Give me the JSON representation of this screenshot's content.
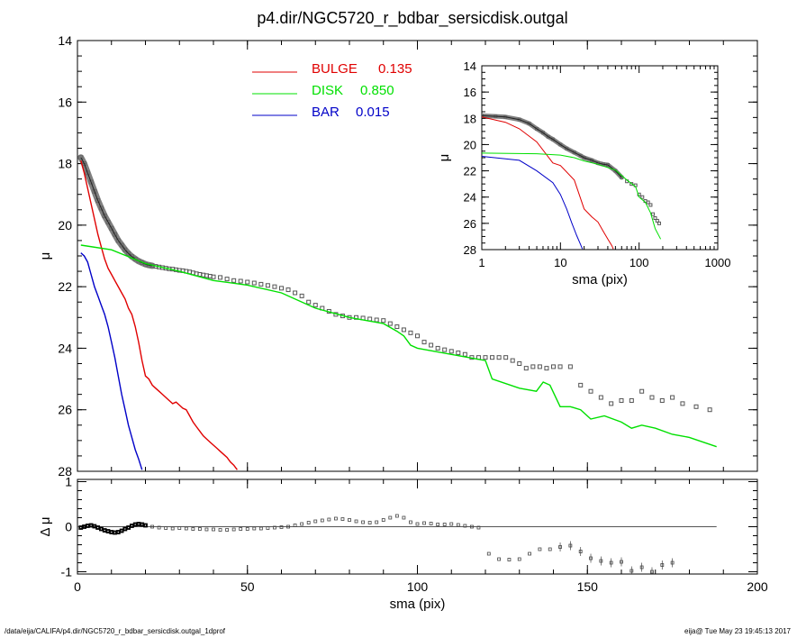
{
  "title": "p4.dir/NGC5720_r_bdbar_sersicdisk.outgal",
  "footer_left": "/data/eija/CALIFA/p4.dir/NGC5720_r_bdbar_sersicdisk.outgal_1dprof",
  "footer_right": "eija@  Tue May 23 19:45:13 2017",
  "colors": {
    "bulge": "#e00000",
    "disk": "#00e000",
    "bar": "#0000c8",
    "data": "#555555",
    "black": "#000000"
  },
  "legend": [
    {
      "name": "BULGE",
      "value": "0.135",
      "color": "#e00000"
    },
    {
      "name": "DISK",
      "value": "0.850",
      "color": "#00e000"
    },
    {
      "name": "BAR",
      "value": "0.015",
      "color": "#0000c8"
    }
  ],
  "chart_data": [
    {
      "type": "scatter",
      "panel": "main profile",
      "xlabel": "",
      "ylabel": "μ",
      "xlim": [
        0,
        200
      ],
      "ylim": [
        28,
        14
      ],
      "y_inverted": true,
      "yticks": [
        "14",
        "16",
        "18",
        "20",
        "22",
        "24",
        "26",
        "28"
      ],
      "xticks": [
        "0",
        "50",
        "100",
        "150",
        "200"
      ],
      "series": [
        {
          "name": "data",
          "style": "squares",
          "x": [
            1,
            2,
            3,
            4,
            5,
            6,
            7,
            8,
            9,
            10,
            11,
            12,
            13,
            14,
            15,
            16,
            17,
            18,
            19,
            20,
            21,
            22,
            23,
            24,
            25,
            26,
            27,
            28,
            29,
            30,
            31,
            32,
            33,
            34,
            35,
            36,
            37,
            38,
            39,
            40,
            42,
            44,
            46,
            48,
            50,
            52,
            54,
            56,
            58,
            60,
            62,
            64,
            66,
            68,
            70,
            72,
            74,
            76,
            78,
            80,
            82,
            84,
            86,
            88,
            90,
            92,
            94,
            96,
            98,
            100,
            102,
            104,
            106,
            108,
            110,
            112,
            114,
            116,
            118,
            120,
            122,
            124,
            126,
            128,
            130,
            132,
            134,
            136,
            138,
            140,
            142,
            145,
            148,
            151,
            154,
            157,
            160,
            163,
            166,
            169,
            172,
            175,
            178,
            182,
            186
          ],
          "y": [
            17.8,
            18.0,
            18.3,
            18.6,
            18.9,
            19.2,
            19.45,
            19.7,
            19.9,
            20.1,
            20.3,
            20.5,
            20.65,
            20.8,
            20.92,
            21.02,
            21.1,
            21.17,
            21.22,
            21.27,
            21.3,
            21.32,
            21.34,
            21.36,
            21.38,
            21.4,
            21.42,
            21.43,
            21.45,
            21.47,
            21.48,
            21.5,
            21.52,
            21.55,
            21.58,
            21.6,
            21.62,
            21.64,
            21.66,
            21.68,
            21.7,
            21.75,
            21.8,
            21.82,
            21.85,
            21.88,
            21.92,
            21.96,
            22.0,
            22.05,
            22.1,
            22.2,
            22.3,
            22.5,
            22.6,
            22.7,
            22.8,
            22.9,
            22.95,
            23.0,
            23.0,
            23.02,
            23.05,
            23.08,
            23.1,
            23.2,
            23.3,
            23.4,
            23.5,
            23.6,
            23.8,
            23.9,
            24.0,
            24.05,
            24.1,
            24.15,
            24.2,
            24.3,
            24.3,
            24.3,
            24.3,
            24.3,
            24.3,
            24.4,
            24.5,
            24.65,
            24.6,
            24.6,
            24.65,
            24.6,
            24.6,
            24.6,
            25.2,
            25.4,
            25.6,
            25.8,
            25.7,
            25.7,
            25.4,
            25.6,
            25.7,
            25.6,
            25.8,
            25.9,
            26.0
          ]
        },
        {
          "name": "BULGE",
          "style": "line",
          "color": "#e00000",
          "x": [
            1,
            2,
            3,
            4,
            5,
            6,
            7,
            8,
            9,
            10,
            11,
            12,
            13,
            14,
            15,
            16,
            17,
            18,
            19,
            20,
            21,
            22,
            23,
            24,
            25,
            26,
            27,
            28,
            29,
            30,
            31,
            32,
            33,
            34,
            35,
            36,
            37,
            38,
            39,
            40,
            41,
            42,
            43,
            44,
            45,
            46,
            47
          ],
          "y": [
            17.9,
            18.3,
            18.8,
            19.3,
            19.8,
            20.3,
            20.7,
            21.1,
            21.4,
            21.6,
            21.8,
            22.0,
            22.2,
            22.4,
            22.7,
            22.9,
            23.3,
            23.8,
            24.4,
            24.9,
            25.0,
            25.2,
            25.3,
            25.4,
            25.5,
            25.6,
            25.7,
            25.8,
            25.75,
            25.85,
            25.95,
            26.0,
            26.2,
            26.4,
            26.55,
            26.7,
            26.85,
            26.95,
            27.05,
            27.15,
            27.25,
            27.35,
            27.45,
            27.55,
            27.7,
            27.8,
            27.95
          ]
        },
        {
          "name": "DISK",
          "style": "line",
          "color": "#00e000",
          "x": [
            1,
            10,
            20,
            30,
            40,
            50,
            60,
            70,
            80,
            90,
            94,
            96,
            98,
            100,
            110,
            115,
            120,
            122,
            130,
            135,
            137,
            139,
            142,
            145,
            148,
            151,
            155,
            160,
            163,
            166,
            170,
            175,
            180,
            188
          ],
          "y": [
            20.65,
            20.8,
            21.25,
            21.5,
            21.8,
            21.95,
            22.2,
            22.7,
            23.0,
            23.2,
            23.45,
            23.6,
            23.9,
            24.0,
            24.2,
            24.3,
            24.4,
            25.0,
            25.3,
            25.4,
            25.1,
            25.2,
            25.9,
            25.9,
            26.0,
            26.3,
            26.2,
            26.4,
            26.6,
            26.5,
            26.6,
            26.8,
            26.9,
            27.2
          ]
        },
        {
          "name": "BAR",
          "style": "line",
          "color": "#0000c8",
          "x": [
            1,
            2,
            3,
            4,
            5,
            6,
            7,
            8,
            9,
            10,
            11,
            12,
            13,
            14,
            15,
            16,
            17,
            18,
            19
          ],
          "y": [
            20.9,
            21.0,
            21.2,
            21.6,
            22.0,
            22.3,
            22.6,
            22.9,
            23.3,
            23.8,
            24.3,
            24.9,
            25.5,
            26.0,
            26.5,
            26.9,
            27.3,
            27.6,
            27.95
          ]
        }
      ]
    },
    {
      "type": "scatter",
      "panel": "residuals",
      "xlabel": "sma (pix)",
      "ylabel": "Δ μ",
      "xlim": [
        0,
        200
      ],
      "ylim": [
        -1.05,
        1.05
      ],
      "yticks": [
        "1",
        "0",
        "-1"
      ],
      "xticks": [
        "0",
        "50",
        "100",
        "150",
        "200"
      ],
      "x": [
        1,
        2,
        3,
        4,
        5,
        6,
        7,
        8,
        9,
        10,
        11,
        12,
        13,
        14,
        15,
        16,
        17,
        18,
        19,
        20,
        22,
        24,
        26,
        28,
        30,
        32,
        34,
        36,
        38,
        40,
        42,
        44,
        46,
        48,
        50,
        52,
        54,
        56,
        58,
        60,
        62,
        64,
        66,
        68,
        70,
        72,
        74,
        76,
        78,
        80,
        82,
        84,
        86,
        88,
        90,
        92,
        94,
        96,
        98,
        100,
        102,
        104,
        106,
        108,
        110,
        112,
        114,
        116,
        118,
        121,
        124,
        127,
        130,
        133,
        136,
        139,
        142,
        145,
        148,
        151,
        154,
        157,
        160,
        163,
        166,
        169,
        172,
        175
      ],
      "y": [
        -0.02,
        0.0,
        0.02,
        0.03,
        0.01,
        -0.02,
        -0.05,
        -0.08,
        -0.1,
        -0.12,
        -0.13,
        -0.12,
        -0.09,
        -0.05,
        -0.02,
        0.02,
        0.05,
        0.06,
        0.05,
        0.03,
        0.0,
        -0.02,
        -0.03,
        -0.04,
        -0.03,
        -0.04,
        -0.05,
        -0.05,
        -0.06,
        -0.06,
        -0.07,
        -0.07,
        -0.06,
        -0.05,
        -0.05,
        -0.04,
        -0.04,
        -0.03,
        -0.02,
        -0.01,
        0.0,
        0.03,
        0.06,
        0.09,
        0.12,
        0.14,
        0.16,
        0.18,
        0.17,
        0.15,
        0.12,
        0.1,
        0.09,
        0.1,
        0.15,
        0.2,
        0.24,
        0.2,
        0.1,
        0.06,
        0.08,
        0.07,
        0.05,
        0.05,
        0.06,
        0.04,
        0.02,
        0.0,
        -0.02,
        -0.6,
        -0.72,
        -0.73,
        -0.72,
        -0.6,
        -0.5,
        -0.5,
        -0.45,
        -0.42,
        -0.55,
        -0.7,
        -0.76,
        -0.8,
        -0.78,
        -0.98,
        -0.9,
        -1.0,
        -0.85,
        -0.8
      ],
      "zero_line_xlim": [
        0,
        188
      ]
    },
    {
      "type": "line",
      "panel": "inset",
      "xlabel": "sma (pix)",
      "ylabel": "μ",
      "xscale": "log",
      "xlim": [
        1,
        1000
      ],
      "ylim": [
        28,
        14
      ],
      "y_inverted": true,
      "yticks": [
        "14",
        "16",
        "18",
        "20",
        "22",
        "24",
        "26",
        "28"
      ],
      "xticks": [
        "1",
        "10",
        "100",
        "1000"
      ],
      "series": [
        {
          "name": "data",
          "style": "squares",
          "x": [
            1,
            1.5,
            2,
            3,
            4,
            5,
            6,
            7,
            8,
            10,
            12,
            15,
            18,
            20,
            25,
            30,
            35,
            40,
            50,
            60,
            70,
            80,
            90,
            100,
            110,
            120,
            130,
            140,
            150,
            160,
            170,
            180
          ],
          "y": [
            17.8,
            17.85,
            17.9,
            18.1,
            18.4,
            18.8,
            19.1,
            19.4,
            19.6,
            20.0,
            20.3,
            20.6,
            20.85,
            21.0,
            21.2,
            21.4,
            21.5,
            21.55,
            22.0,
            22.5,
            22.8,
            23.0,
            23.1,
            23.8,
            24.0,
            24.3,
            24.4,
            24.6,
            25.3,
            25.6,
            25.8,
            26.0
          ]
        },
        {
          "name": "BULGE",
          "style": "line",
          "color": "#e00000",
          "x": [
            1,
            2,
            3,
            5,
            8,
            10,
            15,
            20,
            25,
            30,
            35,
            40,
            45,
            47
          ],
          "y": [
            17.9,
            18.3,
            18.8,
            19.8,
            21.4,
            21.6,
            22.7,
            24.9,
            25.5,
            25.9,
            26.6,
            27.2,
            27.7,
            27.95
          ]
        },
        {
          "name": "DISK",
          "style": "line",
          "color": "#00e000",
          "x": [
            1,
            5,
            10,
            15,
            20,
            30,
            50,
            70,
            90,
            100,
            120,
            140,
            160,
            188
          ],
          "y": [
            20.65,
            20.7,
            20.8,
            21.0,
            21.25,
            21.5,
            21.95,
            22.7,
            23.2,
            24.0,
            24.4,
            25.2,
            26.4,
            27.2
          ]
        },
        {
          "name": "BAR",
          "style": "line",
          "color": "#0000c8",
          "x": [
            1,
            3,
            5,
            8,
            10,
            12,
            14,
            16,
            18,
            19
          ],
          "y": [
            20.9,
            21.2,
            22.0,
            22.9,
            23.8,
            24.9,
            26.0,
            26.9,
            27.6,
            27.95
          ]
        }
      ]
    }
  ]
}
